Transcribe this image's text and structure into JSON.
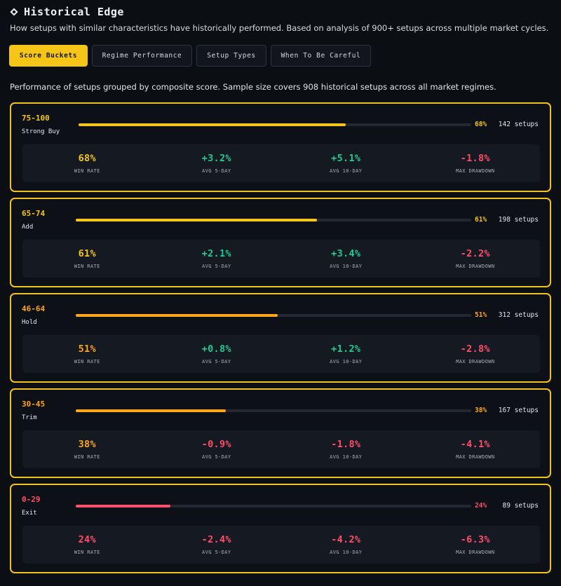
{
  "header": {
    "title": "Historical Edge",
    "subtitle": "How setups with similar characteristics have historically performed. Based on analysis of 900+ setups across multiple market cycles."
  },
  "tabs": [
    {
      "label": "Score Buckets",
      "active": true
    },
    {
      "label": "Regime Performance",
      "active": false
    },
    {
      "label": "Setup Types",
      "active": false
    },
    {
      "label": "When To Be Careful",
      "active": false
    }
  ],
  "description": "Performance of setups grouped by composite score. Sample size covers 908 historical setups across all market regimes.",
  "metric_labels": {
    "win_rate": "WIN RATE",
    "avg5": "AVG 5-DAY",
    "avg10": "AVG 10-DAY",
    "drawdown": "MAX DRAWDOWN"
  },
  "colors": {
    "accent": "#f5c518",
    "positive": "#22c992",
    "negative": "#ff4d6a",
    "amber": "#ffa51a",
    "border": "#f2c318"
  },
  "buckets": [
    {
      "range": "75-100",
      "label": "Strong Buy",
      "pct": "68%",
      "fill_fraction": 0.68,
      "setups": "142 setups",
      "win_rate": "68%",
      "avg5": "+3.2%",
      "avg10": "+5.1%",
      "drawdown": "-1.8%",
      "tone": "yellow"
    },
    {
      "range": "65-74",
      "label": "Add",
      "pct": "61%",
      "fill_fraction": 0.61,
      "setups": "198 setups",
      "win_rate": "61%",
      "avg5": "+2.1%",
      "avg10": "+3.4%",
      "drawdown": "-2.2%",
      "tone": "yellow"
    },
    {
      "range": "46-64",
      "label": "Hold",
      "pct": "51%",
      "fill_fraction": 0.51,
      "setups": "312 setups",
      "win_rate": "51%",
      "avg5": "+0.8%",
      "avg10": "+1.2%",
      "drawdown": "-2.8%",
      "tone": "amber"
    },
    {
      "range": "30-45",
      "label": "Trim",
      "pct": "38%",
      "fill_fraction": 0.38,
      "setups": "167 setups",
      "win_rate": "38%",
      "avg5": "-0.9%",
      "avg10": "-1.8%",
      "drawdown": "-4.1%",
      "tone": "amber"
    },
    {
      "range": "0-29",
      "label": "Exit",
      "pct": "24%",
      "fill_fraction": 0.24,
      "setups": "89 setups",
      "win_rate": "24%",
      "avg5": "-2.4%",
      "avg10": "-4.2%",
      "drawdown": "-6.3%",
      "tone": "red"
    }
  ]
}
